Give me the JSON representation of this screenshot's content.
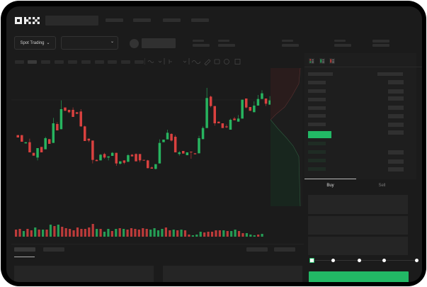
{
  "brand": {
    "logo": "OKX"
  },
  "toolbar": {
    "market_select": "Spot Trading",
    "pair_select": ""
  },
  "order_form": {
    "tabs": [
      {
        "label": "Buy",
        "active": true
      },
      {
        "label": "Sell",
        "active": false
      }
    ],
    "slider_points": [
      0,
      25,
      50,
      75,
      100
    ],
    "slider_value": 0
  },
  "colors": {
    "up": "#27b45f",
    "down": "#d9413f",
    "background": "#1b1b1b",
    "accent": "#22b865"
  },
  "icons": [
    "chevron-down-icon",
    "indicator-icon",
    "line-icon",
    "draw-icon",
    "camera-icon",
    "settings-icon",
    "fullscreen-icon",
    "orderbook-both-icon",
    "orderbook-bids-icon",
    "orderbook-asks-icon"
  ],
  "candles": [
    [
      175,
      165,
      175,
      165
    ],
    [
      175,
      147,
      175,
      147
    ],
    [
      140,
      145,
      145,
      140
    ],
    [
      145,
      102,
      160,
      102
    ],
    [
      100,
      88,
      100,
      88
    ],
    [
      80,
      120,
      120,
      68
    ],
    [
      125,
      102,
      125,
      102
    ],
    [
      115,
      162,
      168,
      115
    ],
    [
      158,
      138,
      158,
      138
    ],
    [
      142,
      225,
      248,
      142
    ],
    [
      222,
      195,
      230,
      195
    ],
    [
      200,
      285,
      322,
      200
    ],
    [
      292,
      278,
      292,
      278
    ],
    [
      282,
      272,
      282,
      268
    ],
    [
      282,
      252,
      292,
      252
    ],
    [
      272,
      265,
      272,
      265
    ],
    [
      275,
      212,
      285,
      210
    ],
    [
      212,
      150,
      215,
      150
    ],
    [
      160,
      152,
      160,
      145
    ],
    [
      152,
      70,
      152,
      55
    ],
    [
      70,
      65,
      72,
      65
    ],
    [
      68,
      92,
      95,
      68
    ],
    [
      95,
      80,
      100,
      75
    ],
    [
      80,
      85,
      85,
      68
    ],
    [
      87,
      100,
      103,
      87
    ],
    [
      100,
      55,
      100,
      45
    ],
    [
      54,
      64,
      64,
      50
    ],
    [
      68,
      58,
      68,
      52
    ],
    [
      62,
      90,
      95,
      62
    ],
    [
      92,
      85,
      95,
      85
    ],
    [
      95,
      64,
      98,
      64
    ],
    [
      95,
      68,
      95,
      60
    ],
    [
      70,
      67,
      70,
      67
    ],
    [
      68,
      35,
      70,
      35
    ],
    [
      38,
      33,
      42,
      33
    ],
    [
      32,
      52,
      52,
      30
    ],
    [
      55,
      142,
      157,
      55
    ],
    [
      145,
      156,
      156,
      145
    ],
    [
      157,
      185,
      198,
      157
    ],
    [
      180,
      152,
      183,
      148
    ],
    [
      168,
      102,
      175,
      102
    ],
    [
      95,
      102,
      108,
      88
    ],
    [
      108,
      97,
      108,
      97
    ],
    [
      90,
      102,
      102,
      90
    ],
    [
      105,
      102,
      105,
      75
    ],
    [
      98,
      94,
      98,
      94
    ],
    [
      98,
      162,
      172,
      98
    ],
    [
      158,
      205,
      212,
      158
    ],
    [
      205,
      332,
      375,
      205
    ],
    [
      338,
      298,
      342,
      292
    ],
    [
      298,
      225,
      298,
      215
    ],
    [
      232,
      225,
      232,
      225
    ],
    [
      225,
      205,
      225,
      205
    ],
    [
      212,
      208,
      220,
      205
    ],
    [
      198,
      240,
      245,
      198
    ],
    [
      245,
      238,
      252,
      238
    ],
    [
      232,
      245,
      260,
      232
    ],
    [
      245,
      325,
      325,
      245
    ],
    [
      330,
      292,
      330,
      288
    ],
    [
      294,
      278,
      294,
      278
    ],
    [
      272,
      300,
      318,
      272
    ],
    [
      300,
      328,
      345,
      300
    ],
    [
      328,
      352,
      365,
      328
    ],
    [
      330,
      308,
      330,
      298
    ],
    [
      304,
      322,
      340,
      304
    ]
  ],
  "volumes": [
    10,
    11,
    8,
    11,
    9,
    13,
    10,
    10,
    10,
    17,
    15,
    17,
    14,
    12,
    11,
    9,
    13,
    11,
    11,
    13,
    18,
    11,
    11,
    7,
    11,
    8,
    11,
    12,
    11,
    10,
    12,
    11,
    10,
    12,
    11,
    10,
    12,
    9,
    11,
    13,
    9,
    10,
    9,
    10,
    9,
    3,
    2,
    3,
    7,
    6,
    7,
    7,
    9,
    9,
    9,
    8,
    8,
    10,
    8,
    5,
    5,
    3,
    2,
    3,
    4
  ]
}
